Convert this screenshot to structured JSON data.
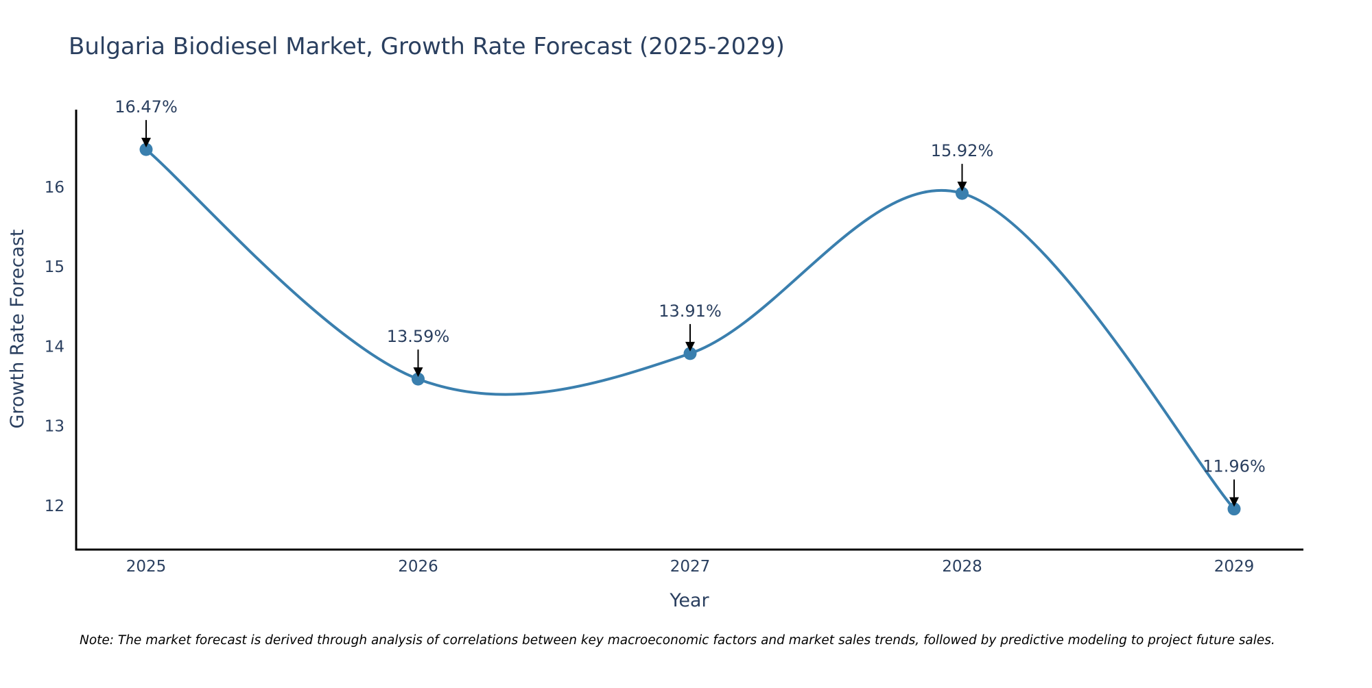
{
  "chart_data": {
    "type": "line",
    "title": "Bulgaria Biodiesel Market, Growth Rate Forecast (2025-2029)",
    "xlabel": "Year",
    "ylabel": "Growth Rate Forecast",
    "categories": [
      "2025",
      "2026",
      "2027",
      "2028",
      "2029"
    ],
    "values": [
      16.47,
      13.59,
      13.91,
      15.92,
      11.96
    ],
    "annotations": [
      "16.47%",
      "13.59%",
      "13.91%",
      "15.92%",
      "11.96%"
    ],
    "yticks": [
      12,
      13,
      14,
      15,
      16
    ],
    "ylim": [
      11.45,
      16.97
    ],
    "line_shape": "spline",
    "grid": false,
    "note": "Note: The market forecast is derived through analysis of correlations between key macroeconomic factors and market sales trends, followed by predictive modeling to project future sales.",
    "colors": {
      "line": "#3a7fae",
      "marker": "#3a7fae",
      "arrow": "#000000",
      "axis": "#000000",
      "text": "#2a3f5f"
    }
  }
}
